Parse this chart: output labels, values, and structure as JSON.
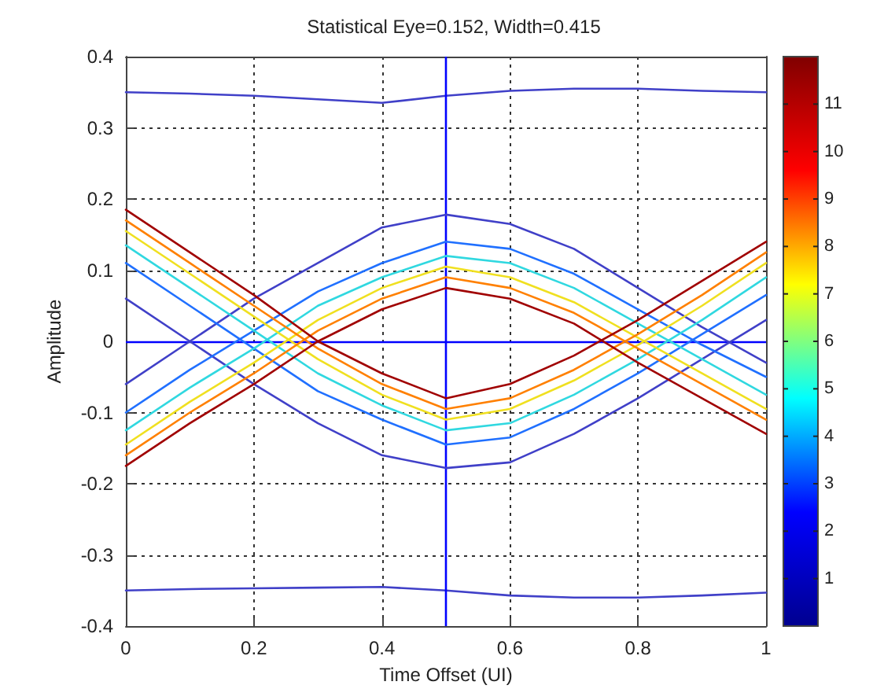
{
  "chart_data": {
    "type": "line",
    "title": "Statistical Eye=0.152, Width=0.415",
    "xlabel": "Time Offset (UI)",
    "ylabel": "Amplitude",
    "x": [
      0,
      0.1,
      0.2,
      0.3,
      0.4,
      0.5,
      0.6,
      0.7,
      0.8,
      0.9,
      1
    ],
    "series": [
      {
        "color": "#4040c8",
        "values": [
          0.35,
          0.348,
          0.345,
          0.34,
          0.335,
          0.345,
          0.352,
          0.355,
          0.355,
          0.352,
          0.35
        ]
      },
      {
        "color": "#4040c8",
        "values": [
          -0.35,
          -0.348,
          -0.347,
          -0.346,
          -0.345,
          -0.35,
          -0.357,
          -0.36,
          -0.36,
          -0.357,
          -0.353
        ]
      },
      {
        "color": "#4040c8",
        "values": [
          -0.06,
          0,
          0.06,
          0.11,
          0.16,
          0.178,
          0.165,
          0.13,
          0.075,
          0.02,
          -0.03
        ]
      },
      {
        "color": "#4040c8",
        "values": [
          0.06,
          0,
          -0.06,
          -0.115,
          -0.16,
          -0.178,
          -0.17,
          -0.13,
          -0.08,
          -0.025,
          0.03
        ]
      },
      {
        "color": "#2070ff",
        "values": [
          -0.1,
          -0.04,
          0.015,
          0.07,
          0.11,
          0.14,
          0.13,
          0.095,
          0.045,
          -0.005,
          -0.05
        ]
      },
      {
        "color": "#2070ff",
        "values": [
          0.11,
          0.05,
          -0.01,
          -0.07,
          -0.11,
          -0.145,
          -0.135,
          -0.095,
          -0.045,
          0.01,
          0.065
        ]
      },
      {
        "color": "#30d8e0",
        "values": [
          -0.125,
          -0.065,
          -0.01,
          0.05,
          0.09,
          0.12,
          0.11,
          0.075,
          0.025,
          -0.025,
          -0.075
        ]
      },
      {
        "color": "#30d8e0",
        "values": [
          0.135,
          0.075,
          0.015,
          -0.045,
          -0.09,
          -0.125,
          -0.115,
          -0.075,
          -0.025,
          0.03,
          0.09
        ]
      },
      {
        "color": "#f0e020",
        "values": [
          -0.145,
          -0.085,
          -0.03,
          0.03,
          0.075,
          0.105,
          0.09,
          0.055,
          0.005,
          -0.045,
          -0.095
        ]
      },
      {
        "color": "#f0e020",
        "values": [
          0.155,
          0.095,
          0.035,
          -0.025,
          -0.075,
          -0.11,
          -0.095,
          -0.055,
          -0.005,
          0.05,
          0.11
        ]
      },
      {
        "color": "#ff8000",
        "values": [
          -0.16,
          -0.1,
          -0.045,
          0.015,
          0.06,
          0.09,
          0.075,
          0.04,
          -0.01,
          -0.06,
          -0.11
        ]
      },
      {
        "color": "#ff8000",
        "values": [
          0.17,
          0.11,
          0.05,
          -0.01,
          -0.06,
          -0.095,
          -0.08,
          -0.04,
          0.01,
          0.065,
          0.125
        ]
      },
      {
        "color": "#a00000",
        "values": [
          -0.175,
          -0.115,
          -0.06,
          0,
          0.045,
          0.075,
          0.06,
          0.025,
          -0.03,
          -0.08,
          -0.13
        ]
      },
      {
        "color": "#a00000",
        "values": [
          0.185,
          0.125,
          0.065,
          0,
          -0.045,
          -0.08,
          -0.06,
          -0.02,
          0.03,
          0.085,
          0.14
        ]
      }
    ],
    "xlim": [
      0,
      1
    ],
    "xticks": [
      0,
      0.2,
      0.4,
      0.6,
      0.8,
      1
    ],
    "ylim": [
      -0.4,
      0.4
    ],
    "yticks": [
      -0.4,
      -0.3,
      -0.2,
      -0.1,
      0,
      0.1,
      0.2,
      0.3,
      0.4
    ],
    "ref_lines": [
      {
        "axis": "x",
        "value": 0.5,
        "color": "#0000ff"
      },
      {
        "axis": "y",
        "value": 0,
        "color": "#0000ff"
      }
    ],
    "clim": [
      0,
      12
    ],
    "cticks": [
      1,
      2,
      3,
      4,
      5,
      6,
      7,
      8,
      9,
      10,
      11
    ],
    "grid": true,
    "marker": "none",
    "line_style": "solid"
  }
}
